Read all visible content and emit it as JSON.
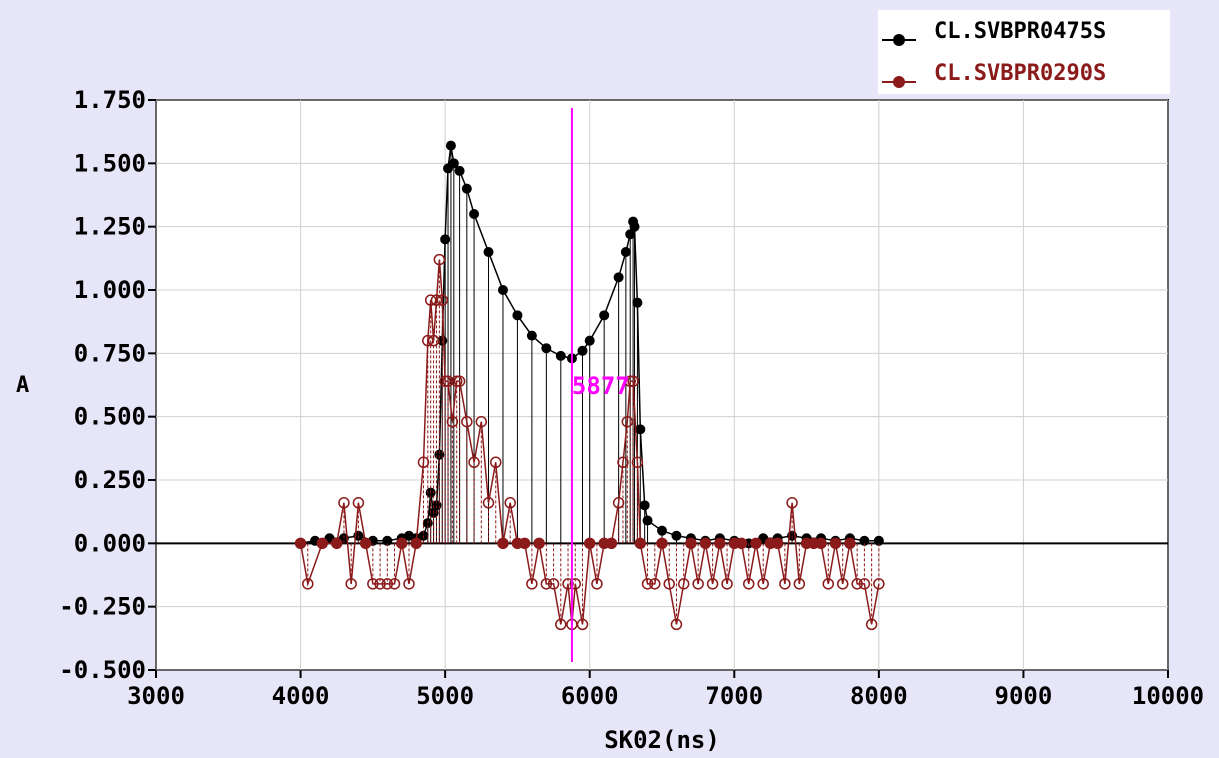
{
  "chart_data": {
    "type": "scatter",
    "style": "stem plot with markers joined by lines",
    "xlabel": "SK02(ns)",
    "ylabel": "A",
    "xlim": [
      3000,
      10000
    ],
    "ylim": [
      -0.5,
      1.75
    ],
    "x_ticks": [
      3000,
      4000,
      5000,
      6000,
      7000,
      8000,
      9000,
      10000
    ],
    "y_ticks": [
      {
        "value": -0.5,
        "label": "-0.500"
      },
      {
        "value": -0.25,
        "label": "-0.250"
      },
      {
        "value": 0.0,
        "label": "0.000"
      },
      {
        "value": 0.25,
        "label": "0.250"
      },
      {
        "value": 0.5,
        "label": "0.500"
      },
      {
        "value": 0.75,
        "label": "0.750"
      },
      {
        "value": 1.0,
        "label": "1.000"
      },
      {
        "value": 1.25,
        "label": "1.250"
      },
      {
        "value": 1.5,
        "label": "1.500"
      },
      {
        "value": 1.75,
        "label": "1.750"
      }
    ],
    "grid": true,
    "legend_position": "top-right",
    "cursor": {
      "x": 5877,
      "label": "5877",
      "color": "#ff00ff"
    },
    "series": [
      {
        "name": "CL.SVBPR0475S",
        "color": "#000000",
        "x": [
          4000,
          4100,
          4200,
          4300,
          4400,
          4500,
          4600,
          4700,
          4750,
          4800,
          4850,
          4880,
          4900,
          4920,
          4940,
          4960,
          4980,
          5000,
          5020,
          5040,
          5060,
          5100,
          5150,
          5200,
          5300,
          5400,
          5500,
          5600,
          5700,
          5800,
          5877,
          5950,
          6000,
          6100,
          6200,
          6250,
          6280,
          6300,
          6310,
          6330,
          6350,
          6380,
          6400,
          6500,
          6600,
          6700,
          6800,
          6900,
          7000,
          7100,
          7200,
          7300,
          7400,
          7500,
          7600,
          7700,
          7800,
          7900,
          8000
        ],
        "values": [
          0.0,
          0.01,
          0.02,
          0.02,
          0.03,
          0.01,
          0.01,
          0.02,
          0.03,
          0.02,
          0.03,
          0.08,
          0.2,
          0.12,
          0.15,
          0.35,
          0.8,
          1.2,
          1.48,
          1.57,
          1.5,
          1.47,
          1.4,
          1.3,
          1.15,
          1.0,
          0.9,
          0.82,
          0.77,
          0.74,
          0.73,
          0.76,
          0.8,
          0.9,
          1.05,
          1.15,
          1.22,
          1.27,
          1.25,
          0.95,
          0.45,
          0.15,
          0.09,
          0.05,
          0.03,
          0.02,
          0.01,
          0.02,
          0.01,
          0.0,
          0.02,
          0.02,
          0.03,
          0.02,
          0.02,
          0.01,
          0.02,
          0.01,
          0.01
        ]
      },
      {
        "name": "CL.SVBPR0290S",
        "color": "#8b1a1a",
        "x": [
          4000,
          4050,
          4150,
          4250,
          4300,
          4350,
          4400,
          4450,
          4500,
          4550,
          4600,
          4650,
          4700,
          4750,
          4800,
          4850,
          4880,
          4900,
          4920,
          4940,
          4960,
          4980,
          5000,
          5020,
          5050,
          5080,
          5100,
          5150,
          5200,
          5250,
          5300,
          5350,
          5400,
          5450,
          5500,
          5550,
          5600,
          5650,
          5700,
          5750,
          5800,
          5850,
          5877,
          5900,
          5950,
          6000,
          6050,
          6100,
          6150,
          6200,
          6230,
          6260,
          6280,
          6300,
          6330,
          6350,
          6400,
          6450,
          6500,
          6550,
          6600,
          6650,
          6700,
          6750,
          6800,
          6850,
          6900,
          6950,
          7000,
          7050,
          7100,
          7150,
          7200,
          7250,
          7300,
          7350,
          7400,
          7450,
          7500,
          7550,
          7600,
          7650,
          7700,
          7750,
          7800,
          7850,
          7900,
          7950,
          8000
        ],
        "values": [
          0.0,
          -0.16,
          0.0,
          0.0,
          0.16,
          -0.16,
          0.16,
          0.0,
          -0.16,
          -0.16,
          -0.16,
          -0.16,
          0.0,
          -0.16,
          0.0,
          0.32,
          0.8,
          0.96,
          0.8,
          0.96,
          1.12,
          0.96,
          0.64,
          0.64,
          0.48,
          0.64,
          0.64,
          0.48,
          0.32,
          0.48,
          0.16,
          0.32,
          0.0,
          0.16,
          0.0,
          0.0,
          -0.16,
          0.0,
          -0.16,
          -0.16,
          -0.32,
          -0.16,
          -0.32,
          -0.16,
          -0.32,
          0.0,
          -0.16,
          0.0,
          0.0,
          0.16,
          0.32,
          0.48,
          0.64,
          0.64,
          0.32,
          0.0,
          -0.16,
          -0.16,
          0.0,
          -0.16,
          -0.32,
          -0.16,
          0.0,
          -0.16,
          0.0,
          -0.16,
          0.0,
          -0.16,
          0.0,
          0.0,
          -0.16,
          0.0,
          -0.16,
          0.0,
          0.0,
          -0.16,
          0.16,
          -0.16,
          0.0,
          0.0,
          0.0,
          -0.16,
          0.0,
          -0.16,
          0.0,
          -0.16,
          -0.16,
          -0.32,
          -0.16
        ]
      }
    ]
  }
}
